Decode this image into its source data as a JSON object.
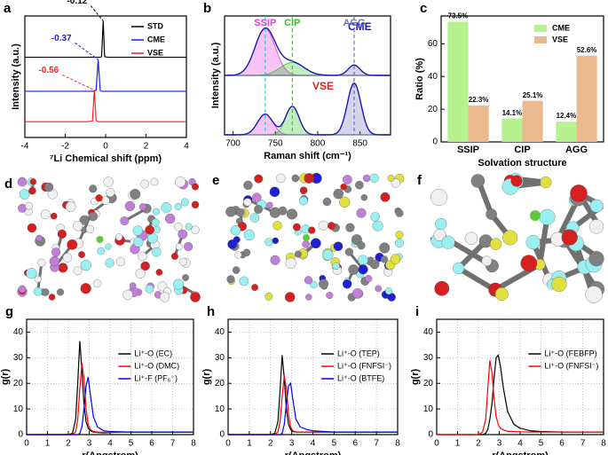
{
  "chart_data": [
    {
      "panel": "a",
      "type": "line",
      "xlabel": "⁷Li Chemical shift (ppm)",
      "ylabel": "Intensity (a.u.)",
      "xlim": [
        -4,
        4
      ],
      "xticks": [
        -4,
        -2,
        0,
        2,
        4
      ],
      "ylim": [
        0,
        10
      ],
      "legend": "upper right",
      "x": [
        -4,
        -2,
        -0.9,
        -0.65,
        -0.56,
        -0.47,
        -0.37,
        -0.27,
        -0.2,
        -0.12,
        -0.05,
        0.1,
        2,
        4
      ],
      "series": [
        {
          "name": "STD",
          "color": "#000000",
          "values": [
            6.6,
            6.6,
            6.6,
            6.6,
            6.6,
            6.6,
            6.6,
            6.6,
            6.65,
            9.6,
            6.65,
            6.6,
            6.6,
            6.6
          ]
        },
        {
          "name": "CME",
          "color": "#1a1aff",
          "values": [
            3.8,
            3.8,
            3.8,
            3.8,
            3.82,
            3.9,
            6.4,
            3.9,
            3.8,
            3.8,
            3.8,
            3.8,
            3.8,
            3.8
          ]
        },
        {
          "name": "VSE",
          "color": "#ff2020",
          "values": [
            1.3,
            1.3,
            1.3,
            1.35,
            3.9,
            1.4,
            1.3,
            1.3,
            1.3,
            1.3,
            1.3,
            1.3,
            1.3,
            1.3
          ]
        }
      ],
      "annotations": [
        "-0.12",
        "-0.37",
        "-0.56"
      ]
    },
    {
      "panel": "b",
      "type": "gaussian",
      "xlabel": "Raman shift (cm⁻¹)",
      "ylabel": "Intensity (a.u.)",
      "xlim": [
        690,
        886
      ],
      "xticks": [
        700,
        750,
        800,
        850
      ],
      "peaks": [
        {
          "label": "SSIP",
          "position": 738,
          "color": "#e040e0",
          "line": "#30c8e0"
        },
        {
          "label": "CIP",
          "position": 770,
          "color": "#30c030",
          "line": "#30d030"
        },
        {
          "label": "AGG",
          "position": 843,
          "color": "#7070b8",
          "line": "#7070b8"
        }
      ],
      "subplots": [
        {
          "label": "CME",
          "color": "#1a1ad0",
          "ylim": [
            0,
            1.15
          ],
          "components": [
            {
              "height": 0.9,
              "width": 12
            },
            {
              "height": 0.25,
              "width": 14
            },
            {
              "height": 0.2,
              "width": 7
            }
          ]
        },
        {
          "label": "VSE",
          "color": "#e02020",
          "ylim": [
            0,
            1.15
          ],
          "components": [
            {
              "height": 0.4,
              "width": 9
            },
            {
              "height": 0.55,
              "width": 8
            },
            {
              "height": 1.0,
              "width": 8
            }
          ]
        }
      ]
    },
    {
      "panel": "c",
      "type": "bar",
      "xlabel": "Solvation structure",
      "ylabel": "Ratio (%)",
      "categories": [
        "SSIP",
        "CIP",
        "AGG"
      ],
      "ylim": [
        0,
        77
      ],
      "yticks": [
        0,
        20,
        40,
        60
      ],
      "legend": "upper right",
      "series": [
        {
          "name": "CME",
          "color": "#b8f290",
          "values": [
            73.5,
            14.1,
            12.4
          ],
          "value_labels": [
            "73.5%",
            "14.1%",
            "12.4%"
          ]
        },
        {
          "name": "VSE",
          "color": "#ebb98e",
          "values": [
            22.3,
            25.1,
            52.6
          ],
          "value_labels": [
            "22.3%",
            "25.1%",
            "52.6%"
          ]
        }
      ]
    },
    {
      "panel": "g",
      "type": "line",
      "xlabel": "r(Angstrom)",
      "ylabel": "g(r)",
      "grid": true,
      "legend": "right",
      "xlim": [
        0,
        8
      ],
      "xticks": [
        0,
        1,
        2,
        3,
        4,
        5,
        6,
        7,
        8
      ],
      "ylim": [
        0,
        45
      ],
      "yticks": [
        0,
        10,
        20,
        30,
        40
      ],
      "x": [
        0,
        2,
        2.2,
        2.35,
        2.45,
        2.55,
        2.65,
        2.75,
        2.85,
        2.95,
        3.05,
        3.2,
        3.4,
        3.7,
        4,
        4.5,
        5,
        6,
        7,
        8
      ],
      "series": [
        {
          "name": "Li⁺-O (EC)",
          "color": "#000000",
          "values": [
            0,
            0,
            0.5,
            6,
            20,
            36.5,
            25,
            12,
            5,
            2.5,
            1.5,
            1,
            0.8,
            0.7,
            0.8,
            1,
            1,
            1,
            1,
            1
          ]
        },
        {
          "name": "Li⁺-O (DMC)",
          "color": "#ff0000",
          "values": [
            0,
            0,
            0,
            1,
            6,
            18,
            28,
            22,
            10,
            4,
            2,
            1.2,
            1,
            0.9,
            0.9,
            1,
            1,
            1,
            1,
            1
          ]
        },
        {
          "name": "Li⁺-F (PF₆⁻)",
          "color": "#0000ff",
          "values": [
            0,
            0,
            0,
            0,
            0,
            0.5,
            3,
            10,
            19,
            22.5,
            16,
            7,
            3,
            1.5,
            1.2,
            1.1,
            1,
            1,
            1,
            1
          ]
        }
      ]
    },
    {
      "panel": "h",
      "type": "line",
      "xlabel": "r(Angstrom)",
      "ylabel": "g(r)",
      "grid": true,
      "legend": "right",
      "xlim": [
        0,
        8
      ],
      "xticks": [
        0,
        1,
        2,
        3,
        4,
        5,
        6,
        7,
        8
      ],
      "ylim": [
        0,
        45
      ],
      "yticks": [
        0,
        10,
        20,
        30,
        40
      ],
      "x": [
        0,
        2,
        2.2,
        2.35,
        2.45,
        2.55,
        2.65,
        2.75,
        2.85,
        2.95,
        3.05,
        3.2,
        3.4,
        3.7,
        4,
        4.5,
        5,
        6,
        7,
        8
      ],
      "series": [
        {
          "name": "Li⁺-O (TEP)",
          "color": "#000000",
          "values": [
            0,
            0,
            0.5,
            5,
            17,
            31,
            22,
            10,
            4,
            2,
            1.2,
            1,
            1,
            1,
            1,
            1,
            1,
            1,
            1,
            1
          ]
        },
        {
          "name": "Li⁺-O (FNFSI⁻)",
          "color": "#ff0000",
          "values": [
            0,
            0,
            0,
            1,
            5,
            15,
            23,
            18,
            8,
            3,
            1.5,
            1,
            1,
            1,
            1,
            1,
            1,
            1,
            1,
            1
          ]
        },
        {
          "name": "Li⁺-O (BTFE)",
          "color": "#0000ff",
          "values": [
            0,
            0,
            0,
            0,
            0,
            0.5,
            4,
            12,
            19,
            20,
            14,
            6,
            3,
            2,
            1.5,
            1.2,
            1,
            1,
            1,
            1
          ]
        }
      ]
    },
    {
      "panel": "i",
      "type": "line",
      "xlabel": "r(Angstrom)",
      "ylabel": "g(r)",
      "grid": true,
      "legend": "right",
      "xlim": [
        0,
        8
      ],
      "xticks": [
        0,
        1,
        2,
        3,
        4,
        5,
        6,
        7,
        8
      ],
      "ylim": [
        0,
        45
      ],
      "yticks": [
        0,
        10,
        20,
        30,
        40
      ],
      "x": [
        0,
        2,
        2.2,
        2.35,
        2.45,
        2.55,
        2.65,
        2.75,
        2.85,
        2.95,
        3.05,
        3.2,
        3.4,
        3.7,
        4,
        4.5,
        5,
        6,
        7,
        8
      ],
      "series": [
        {
          "name": "Li⁺-O (FEBFP)",
          "color": "#000000",
          "values": [
            0,
            0,
            0,
            0.5,
            2,
            6,
            12,
            22,
            30,
            31,
            27,
            18,
            9,
            4,
            2.5,
            1.5,
            1.2,
            1,
            1,
            1
          ]
        },
        {
          "name": "Li⁺-O (FNFSI⁻)",
          "color": "#ff0000",
          "values": [
            0,
            0,
            1,
            6,
            18,
            29,
            24,
            14,
            7,
            4,
            2.5,
            1.8,
            1.3,
            1.2,
            1.1,
            1,
            1,
            1,
            1,
            1
          ]
        }
      ]
    }
  ],
  "images": [
    {
      "panel": "d"
    },
    {
      "panel": "e"
    },
    {
      "panel": "f"
    }
  ]
}
